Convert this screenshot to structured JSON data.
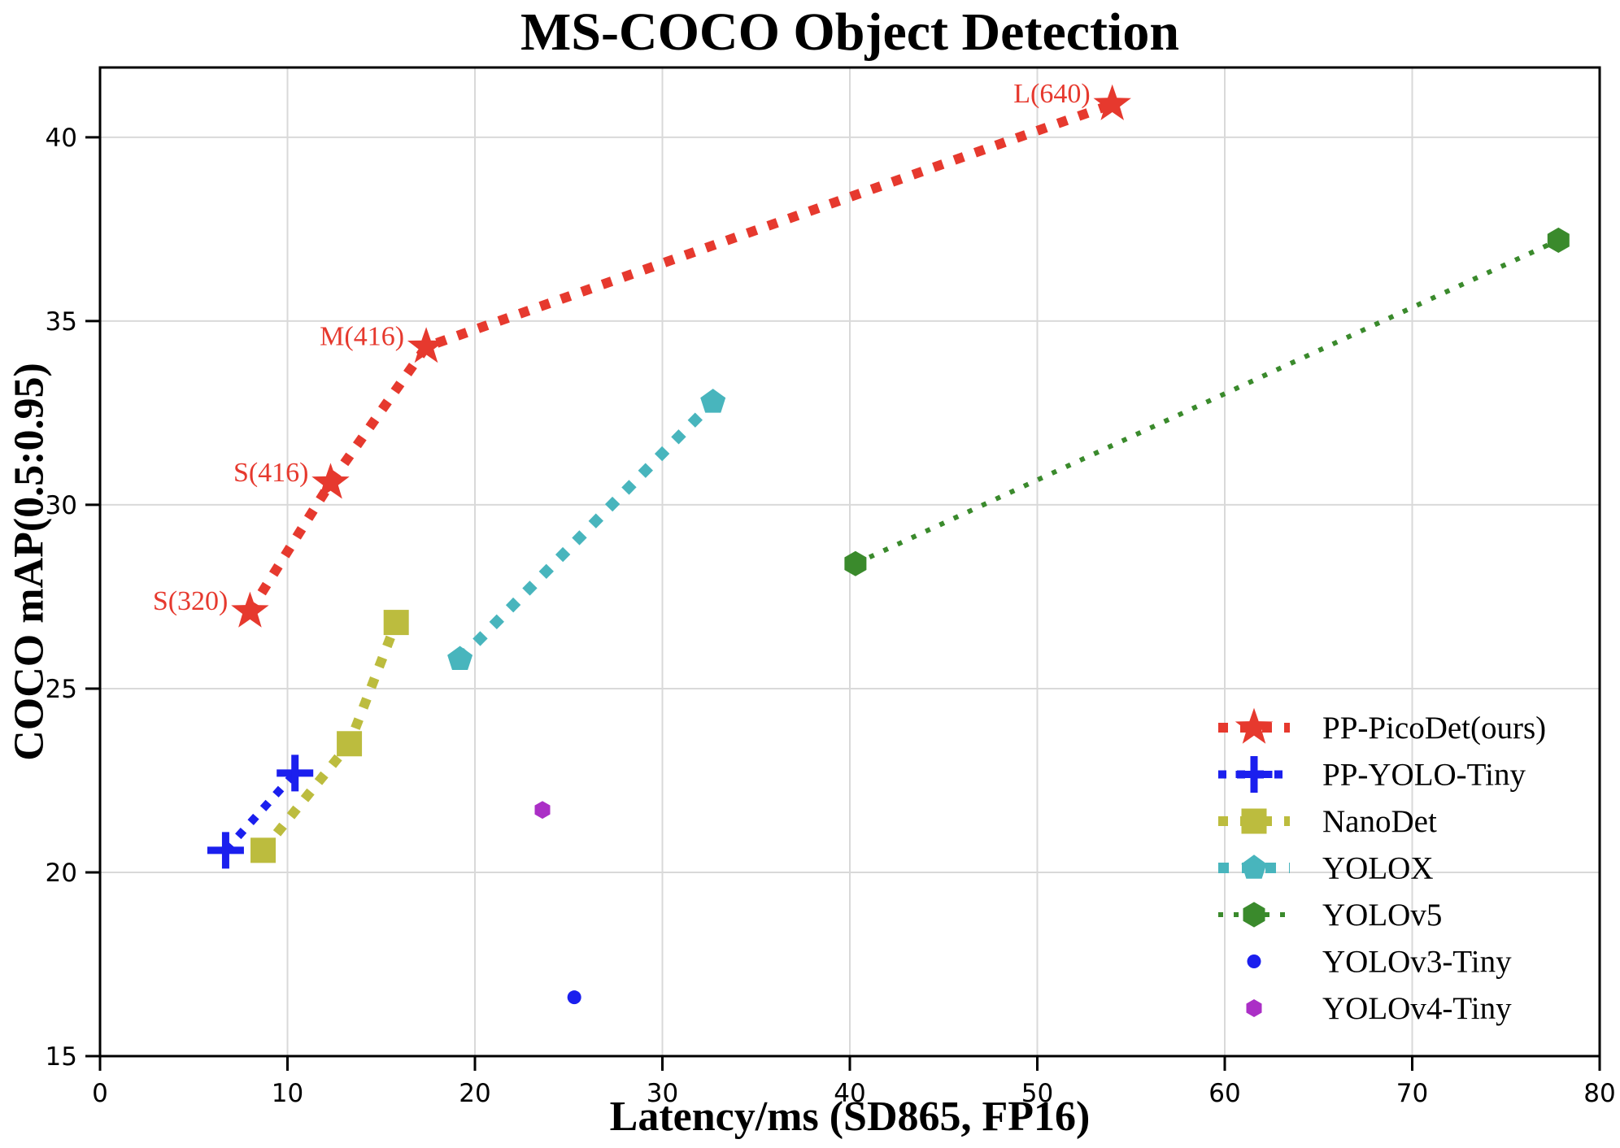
{
  "chart_data": {
    "type": "scatter",
    "title": "MS-COCO Object Detection",
    "xlabel": "Latency/ms (SD865, FP16)",
    "ylabel": "COCO mAP(0.5:0.95)",
    "xlim": [
      0,
      80
    ],
    "ylim": [
      15,
      41.9
    ],
    "xticks": [
      0,
      10,
      20,
      30,
      40,
      50,
      60,
      70,
      80
    ],
    "yticks": [
      15,
      20,
      25,
      30,
      35,
      40
    ],
    "grid": true,
    "grid_color": "#d9d9d9",
    "background": "#ffffff",
    "legend_position": "lower right",
    "series": [
      {
        "name": "PP-PicoDet(ours)",
        "color": "#e6392e",
        "marker": "star",
        "marker_size": 46,
        "line": "dashed",
        "line_width": 12,
        "points": [
          {
            "x": 8.0,
            "y": 27.1,
            "label": "S(320)"
          },
          {
            "x": 12.3,
            "y": 30.6,
            "label": "S(416)"
          },
          {
            "x": 17.4,
            "y": 34.3,
            "label": "M(416)"
          },
          {
            "x": 54.0,
            "y": 40.9,
            "label": "L(640)"
          }
        ]
      },
      {
        "name": "PP-YOLO-Tiny",
        "color": "#1b1fee",
        "marker": "plus",
        "marker_size": 45,
        "line": "dashed",
        "line_width": 10,
        "points": [
          {
            "x": 6.7,
            "y": 20.6
          },
          {
            "x": 10.4,
            "y": 22.7
          }
        ]
      },
      {
        "name": "NanoDet",
        "color": "#bcbc3e",
        "marker": "square",
        "marker_size": 31,
        "line": "dashed",
        "line_width": 12,
        "points": [
          {
            "x": 8.7,
            "y": 20.6
          },
          {
            "x": 13.3,
            "y": 23.5
          },
          {
            "x": 15.8,
            "y": 26.8
          }
        ]
      },
      {
        "name": "YOLOX",
        "color": "#48b5bd",
        "marker": "pentagon",
        "marker_size": 31,
        "line": "dashed",
        "line_width": 13,
        "points": [
          {
            "x": 19.2,
            "y": 25.8
          },
          {
            "x": 32.7,
            "y": 32.8
          }
        ]
      },
      {
        "name": "YOLOv5",
        "color": "#3a8a2c",
        "marker": "hexagon",
        "marker_size": 27,
        "line": "dotted",
        "line_width": 6,
        "points": [
          {
            "x": 40.3,
            "y": 28.4
          },
          {
            "x": 77.8,
            "y": 37.2
          }
        ]
      },
      {
        "name": "YOLOv3-Tiny",
        "color": "#1b1fee",
        "marker": "circle",
        "marker_size": 17,
        "line": "none",
        "line_width": 0,
        "points": [
          {
            "x": 25.3,
            "y": 16.6
          }
        ]
      },
      {
        "name": "YOLOv4-Tiny",
        "color": "#ab2fc6",
        "marker": "hexagon",
        "marker_size": 19,
        "line": "none",
        "line_width": 0,
        "points": [
          {
            "x": 23.6,
            "y": 21.7
          }
        ]
      }
    ]
  }
}
